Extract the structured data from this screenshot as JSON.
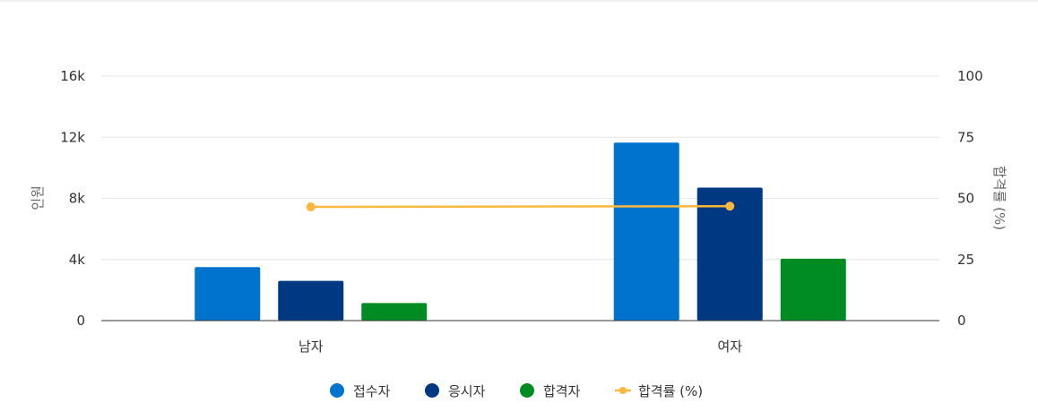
{
  "chart_data": {
    "type": "bar",
    "categories": [
      "남자",
      "여자"
    ],
    "series": [
      {
        "name": "접수자",
        "axis": "left",
        "kind": "bar",
        "color": "#0073cf",
        "values": [
          3500,
          11650
        ]
      },
      {
        "name": "응시자",
        "axis": "left",
        "kind": "bar",
        "color": "#003882",
        "values": [
          2600,
          8700
        ]
      },
      {
        "name": "합격자",
        "axis": "left",
        "kind": "bar",
        "color": "#008c23",
        "values": [
          1150,
          4050
        ]
      },
      {
        "name": "합격률 (%)",
        "axis": "right",
        "kind": "line",
        "color": "#f9b83e",
        "values": [
          46.5,
          46.8
        ]
      }
    ],
    "left_axis": {
      "label": "인원",
      "min": 0,
      "max": 16000,
      "ticks": [
        0,
        4000,
        8000,
        12000,
        16000
      ],
      "tick_labels": [
        "0",
        "4k",
        "8k",
        "12k",
        "16k"
      ]
    },
    "right_axis": {
      "label": "합격률 (%)",
      "min": 0,
      "max": 100,
      "ticks": [
        0,
        25,
        50,
        75,
        100
      ],
      "tick_labels": [
        "0",
        "25",
        "50",
        "75",
        "100"
      ]
    },
    "grid": true,
    "legend_position": "bottom"
  }
}
